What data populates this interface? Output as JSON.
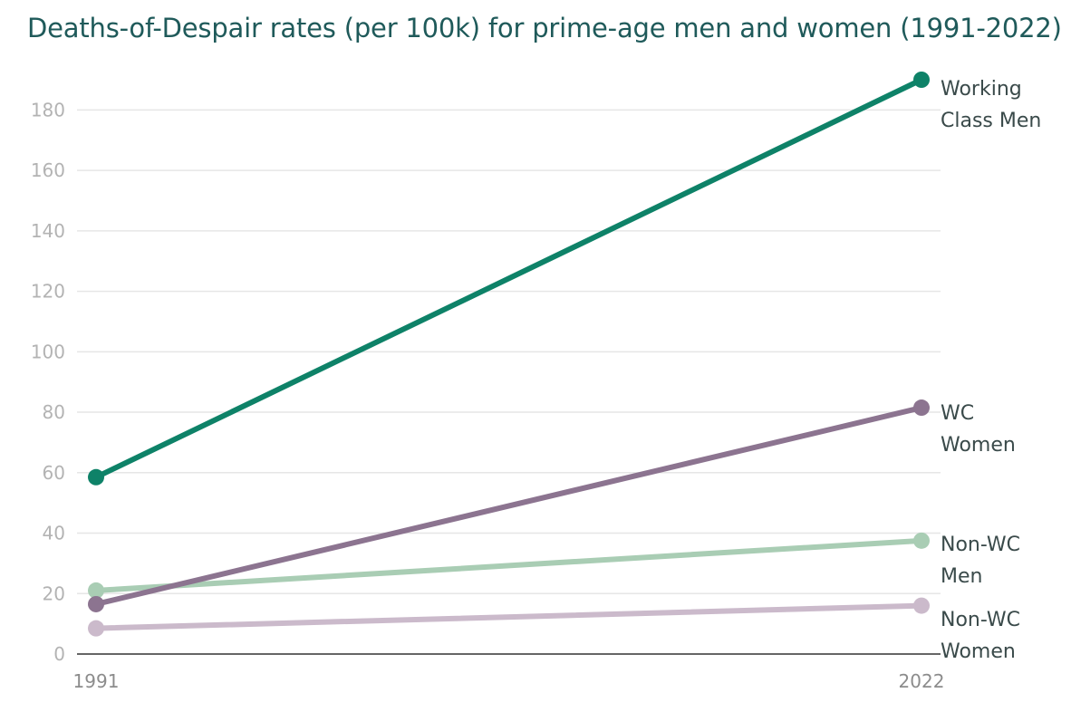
{
  "title": "Deaths-of-Despair rates (per 100k) for prime-age men and women (1991-2022)",
  "chart_data": {
    "type": "line",
    "title": "Deaths-of-Despair rates (per 100k) for prime-age men and women (1991-2022)",
    "xlabel": "",
    "ylabel": "",
    "categories": [
      "1991",
      "2022"
    ],
    "ylim": [
      0,
      190
    ],
    "yticks": [
      0,
      20,
      40,
      60,
      80,
      100,
      120,
      140,
      160,
      180
    ],
    "grid": true,
    "legend": "direct labels at line ends (right)",
    "series": [
      {
        "name": "Non-WC Women",
        "label_lines": [
          "Non-WC",
          "Women"
        ],
        "values": [
          8.5,
          16
        ],
        "color": "#cbbacb"
      },
      {
        "name": "Non-WC Men",
        "label_lines": [
          "Non-WC",
          "Men"
        ],
        "values": [
          21,
          37.5
        ],
        "color": "#a9cdb4"
      },
      {
        "name": "WC Women",
        "label_lines": [
          "WC",
          "Women"
        ],
        "values": [
          16.5,
          81.5
        ],
        "color": "#8c7490"
      },
      {
        "name": "Working Class Men",
        "label_lines": [
          "Working",
          "Class Men"
        ],
        "values": [
          58.5,
          190
        ],
        "color": "#0e8268"
      }
    ]
  }
}
